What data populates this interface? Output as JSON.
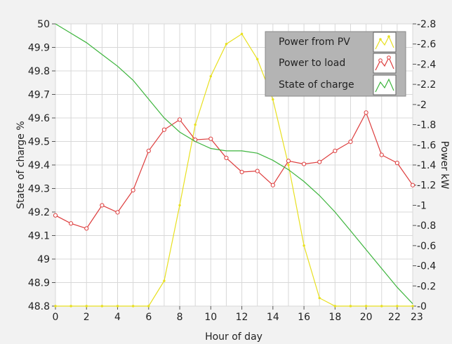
{
  "chart_data": {
    "type": "line",
    "xlabel": "Hour of day",
    "ylabel_left": "State of charge %",
    "ylabel_right": "Power kW",
    "x_ticks": [
      0,
      2,
      4,
      6,
      8,
      10,
      12,
      14,
      16,
      18,
      20,
      22,
      23
    ],
    "x_range": [
      0,
      23
    ],
    "y_left_range": [
      48.8,
      50
    ],
    "y_left_ticks": [
      "48.8",
      "48.9",
      "49",
      "49.1",
      "49.2",
      "49.3",
      "49.4",
      "49.5",
      "49.6",
      "49.7",
      "49.8",
      "49.9",
      "50"
    ],
    "y_right_range": [
      0,
      2.8
    ],
    "y_right_ticks": [
      "0",
      "0.2",
      "0.4",
      "0.6",
      "0.8",
      "1",
      "1.2",
      "1.4",
      "1.6",
      "1.8",
      "2",
      "2.2",
      "2.4",
      "2.6",
      "2.8"
    ],
    "grid": true,
    "legend_position": "top-right",
    "series": [
      {
        "name": "Power from PV",
        "axis": "right",
        "color": "#e8e020",
        "marker": "dot",
        "x": [
          0,
          1,
          2,
          3,
          4,
          5,
          6,
          7,
          8,
          9,
          10,
          11,
          12,
          13,
          14,
          15,
          16,
          17,
          18,
          19,
          20,
          21,
          22,
          23
        ],
        "values": [
          0,
          0,
          0,
          0,
          0,
          0,
          0,
          0.25,
          1,
          1.8,
          2.28,
          2.6,
          2.7,
          2.45,
          2.05,
          1.4,
          0.6,
          0.08,
          0,
          0,
          0,
          0,
          0,
          0
        ]
      },
      {
        "name": "Power to load",
        "axis": "right",
        "color": "#dd3c3c",
        "marker": "circle",
        "x": [
          0,
          1,
          2,
          3,
          4,
          5,
          6,
          7,
          8,
          9,
          10,
          11,
          12,
          13,
          14,
          15,
          16,
          17,
          18,
          19,
          20,
          21,
          22,
          23
        ],
        "values": [
          0.9,
          0.82,
          0.77,
          1.0,
          0.93,
          1.15,
          1.54,
          1.75,
          1.85,
          1.65,
          1.66,
          1.47,
          1.33,
          1.34,
          1.2,
          1.44,
          1.41,
          1.43,
          1.54,
          1.63,
          1.92,
          1.5,
          1.42,
          1.2
        ]
      },
      {
        "name": "State of charge",
        "axis": "left",
        "color": "#3cb43c",
        "marker": "none",
        "x": [
          0,
          1,
          2,
          3,
          4,
          5,
          6,
          7,
          8,
          9,
          10,
          11,
          12,
          13,
          14,
          15,
          16,
          17,
          18,
          19,
          20,
          21,
          22,
          23
        ],
        "values": [
          50,
          49.96,
          49.92,
          49.87,
          49.82,
          49.76,
          49.68,
          49.6,
          49.54,
          49.5,
          49.47,
          49.46,
          49.46,
          49.45,
          49.42,
          49.38,
          49.33,
          49.27,
          49.2,
          49.12,
          49.04,
          48.96,
          48.88,
          48.81
        ]
      }
    ]
  },
  "colors": {
    "page_background": "#f2f2f2",
    "plot_background": "#ffffff",
    "grid": "#d8d8d8",
    "legend_background": "#b4b4b4"
  }
}
